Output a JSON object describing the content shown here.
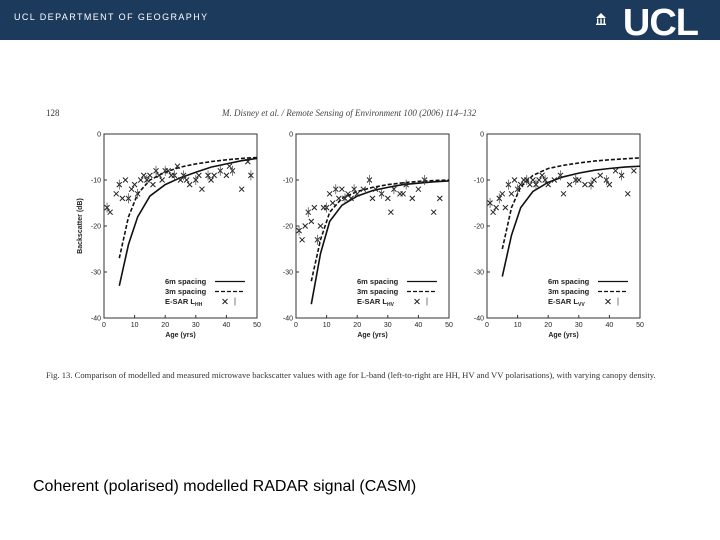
{
  "header": {
    "department": "UCL DEPARTMENT OF GEOGRAPHY",
    "logo_text": "UCL",
    "bar_color": "#1b3a5c"
  },
  "paper": {
    "page_number": "128",
    "reference": "M. Disney et al. / Remote Sensing of Environment 100 (2006) 114–132",
    "caption": "Fig. 13. Comparison of modelled and measured microwave backscatter values with age for L-band (left-to-right are HH, HV and VV polarisations), with varying canopy density."
  },
  "slide_text": "Coherent (polarised) modelled RADAR signal (CASM)",
  "chart_data": [
    {
      "type": "line",
      "panel": "HH",
      "ylabel": "Backscatter (dB)",
      "xlabel": "Age (yrs)",
      "xlim": [
        0,
        50
      ],
      "ylim": [
        -40,
        0
      ],
      "xticks": [
        0,
        10,
        20,
        30,
        40,
        50
      ],
      "yticks": [
        0,
        -10,
        -20,
        -30,
        -40
      ],
      "legend": [
        "6m spacing",
        "3m spacing",
        "E-SAR L"
      ],
      "legend_sub": "HH",
      "series": [
        {
          "name": "6m spacing",
          "x": [
            5,
            8,
            11,
            15,
            20,
            25,
            30,
            35,
            40,
            45,
            50
          ],
          "values": [
            -33,
            -24,
            -18,
            -13.5,
            -11,
            -9.5,
            -8.3,
            -7.2,
            -6.5,
            -5.8,
            -5.3
          ]
        },
        {
          "name": "3m spacing",
          "x": [
            5,
            8,
            11,
            15,
            20,
            25,
            30,
            35,
            40,
            45,
            50
          ],
          "values": [
            -27,
            -18,
            -13,
            -10,
            -8.3,
            -7.2,
            -6.5,
            -6,
            -5.6,
            -5.3,
            -5.1
          ]
        },
        {
          "name": "E-SAR L",
          "x": [
            1,
            2,
            4,
            5,
            6,
            7,
            8,
            9,
            10,
            11,
            12,
            13,
            14,
            15,
            16,
            17,
            18,
            19,
            20,
            21,
            22,
            23,
            24,
            25,
            26,
            27,
            28,
            30,
            31,
            32,
            34,
            35,
            36,
            38,
            40,
            41,
            42,
            45,
            47,
            48
          ],
          "values": [
            -16,
            -17,
            -13,
            -11,
            -14,
            -10,
            -14,
            -12,
            -11,
            -13,
            -10,
            -9,
            -10,
            -9,
            -11,
            -8,
            -9,
            -10,
            -8,
            -8,
            -9,
            -9,
            -7,
            -10,
            -9,
            -10,
            -11,
            -10,
            -9,
            -12,
            -9,
            -10,
            -9,
            -8,
            -9,
            -7,
            -8,
            -12,
            -6,
            -9
          ]
        }
      ]
    },
    {
      "type": "line",
      "panel": "HV",
      "xlabel": "Age (yrs)",
      "xlim": [
        0,
        50
      ],
      "ylim": [
        -40,
        0
      ],
      "xticks": [
        0,
        10,
        20,
        30,
        40,
        50
      ],
      "yticks": [
        0,
        -10,
        -20,
        -30,
        -40
      ],
      "legend": [
        "6m spacing",
        "3m spacing",
        "E-SAR L"
      ],
      "legend_sub": "HV",
      "series": [
        {
          "name": "6m spacing",
          "x": [
            5,
            8,
            11,
            15,
            20,
            25,
            30,
            35,
            40,
            45,
            50
          ],
          "values": [
            -37,
            -26,
            -19,
            -15.5,
            -13.5,
            -12.3,
            -11.6,
            -11,
            -10.7,
            -10.4,
            -10.2
          ]
        },
        {
          "name": "3m spacing",
          "x": [
            5,
            8,
            11,
            15,
            20,
            25,
            30,
            35,
            40,
            45,
            50
          ],
          "values": [
            -32,
            -23,
            -17,
            -14,
            -12.5,
            -11.6,
            -11,
            -10.6,
            -10.3,
            -10.1,
            -10
          ]
        },
        {
          "name": "E-SAR L",
          "x": [
            1,
            2,
            3,
            4,
            5,
            6,
            7,
            8,
            9,
            10,
            11,
            12,
            13,
            14,
            15,
            16,
            17,
            18,
            19,
            20,
            22,
            24,
            25,
            26,
            28,
            30,
            31,
            32,
            34,
            35,
            36,
            38,
            40,
            42,
            45,
            47
          ],
          "values": [
            -21,
            -23,
            -20,
            -17,
            -19,
            -16,
            -23,
            -20,
            -16,
            -16,
            -13,
            -15,
            -12,
            -14,
            -12,
            -14,
            -13,
            -14,
            -12,
            -13,
            -12,
            -10,
            -14,
            -12,
            -13,
            -14,
            -17,
            -12,
            -13,
            -13,
            -11,
            -14,
            -12,
            -10,
            -17,
            -14
          ]
        }
      ]
    },
    {
      "type": "line",
      "panel": "VV",
      "xlabel": "Age (yrs)",
      "xlim": [
        0,
        50
      ],
      "ylim": [
        -40,
        0
      ],
      "xticks": [
        0,
        10,
        20,
        30,
        40,
        50
      ],
      "yticks": [
        0,
        -10,
        -20,
        -30,
        -40
      ],
      "legend": [
        "6m spacing",
        "3m spacing",
        "E-SAR L"
      ],
      "legend_sub": "VV",
      "series": [
        {
          "name": "6m spacing",
          "x": [
            5,
            8,
            11,
            15,
            20,
            25,
            30,
            35,
            40,
            45,
            50
          ],
          "values": [
            -31,
            -22,
            -16,
            -12.5,
            -10.5,
            -9.3,
            -8.5,
            -7.9,
            -7.5,
            -7.2,
            -7
          ]
        },
        {
          "name": "3m spacing",
          "x": [
            5,
            8,
            11,
            15,
            20,
            25,
            30,
            35,
            40,
            45,
            50
          ],
          "values": [
            -25,
            -16,
            -11.5,
            -9,
            -7.5,
            -6.8,
            -6.3,
            -5.9,
            -5.6,
            -5.4,
            -5.2
          ]
        },
        {
          "name": "E-SAR L",
          "x": [
            1,
            2,
            3,
            4,
            5,
            6,
            7,
            8,
            9,
            10,
            11,
            12,
            13,
            14,
            15,
            16,
            17,
            18,
            19,
            20,
            22,
            24,
            25,
            27,
            29,
            30,
            32,
            34,
            35,
            37,
            39,
            40,
            42,
            44,
            46,
            48
          ],
          "values": [
            -15,
            -17,
            -16,
            -14,
            -13,
            -16,
            -11,
            -13,
            -10,
            -12,
            -11,
            -10,
            -10,
            -11,
            -10,
            -11,
            -10,
            -9,
            -10,
            -11,
            -10,
            -9,
            -13,
            -11,
            -10,
            -10,
            -11,
            -11,
            -10,
            -9,
            -10,
            -11,
            -8,
            -9,
            -13,
            -8
          ]
        }
      ]
    }
  ]
}
